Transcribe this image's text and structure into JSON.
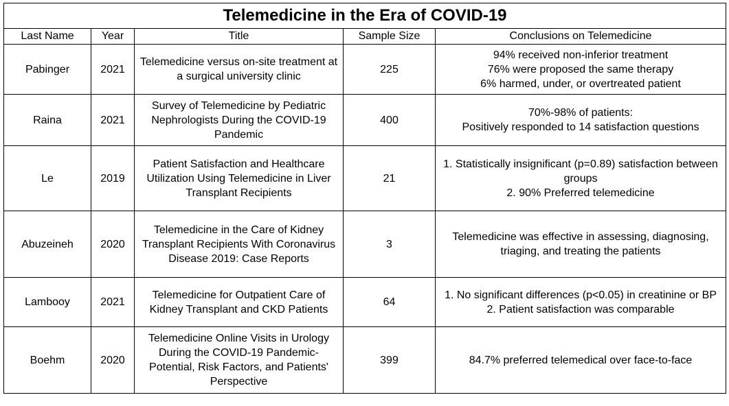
{
  "table": {
    "title": "Telemedicine in the Era of COVID-19",
    "headers": [
      "Last Name",
      "Year",
      "Title",
      "Sample Size",
      "Conclusions on Telemedicine"
    ],
    "rows": [
      {
        "last_name": "Pabinger",
        "year": "2021",
        "title": "Telemedicine versus on-site treatment at a surgical university clinic",
        "sample_size": "225",
        "conclusions": "94% received non-inferior treatment\n76% were proposed the same therapy\n6% harmed, under, or overtreated patient"
      },
      {
        "last_name": "Raina",
        "year": "2021",
        "title": "Survey of Telemedicine by Pediatric Nephrologists During the COVID-19 Pandemic",
        "sample_size": "400",
        "conclusions": "70%-98% of patients:\nPositively responded to 14 satisfaction questions"
      },
      {
        "last_name": "Le",
        "year": "2019",
        "title": "Patient Satisfaction and Healthcare Utilization Using Telemedicine in Liver Transplant Recipients",
        "sample_size": "21",
        "conclusions": "1. Statistically insignificant (p=0.89) satisfaction between groups\n2. 90% Preferred telemedicine"
      },
      {
        "last_name": "Abuzeineh",
        "year": "2020",
        "title": "Telemedicine in the Care of Kidney Transplant Recipients With Coronavirus Disease 2019: Case Reports",
        "sample_size": "3",
        "conclusions": "Telemedicine was effective in assessing, diagnosing, triaging, and treating the patients"
      },
      {
        "last_name": "Lambooy",
        "year": "2021",
        "title": "Telemedicine for Outpatient Care of Kidney Transplant and CKD Patients",
        "sample_size": "64",
        "conclusions": "1. No significant differences (p<0.05) in creatinine or BP\n2. Patient satisfaction was comparable"
      },
      {
        "last_name": "Boehm",
        "year": "2020",
        "title": "Telemedicine Online Visits in Urology During the COVID-19 Pandemic-Potential, Risk Factors, and Patients' Perspective",
        "sample_size": "399",
        "conclusions": "84.7% preferred telemedical over face-to-face"
      }
    ]
  }
}
